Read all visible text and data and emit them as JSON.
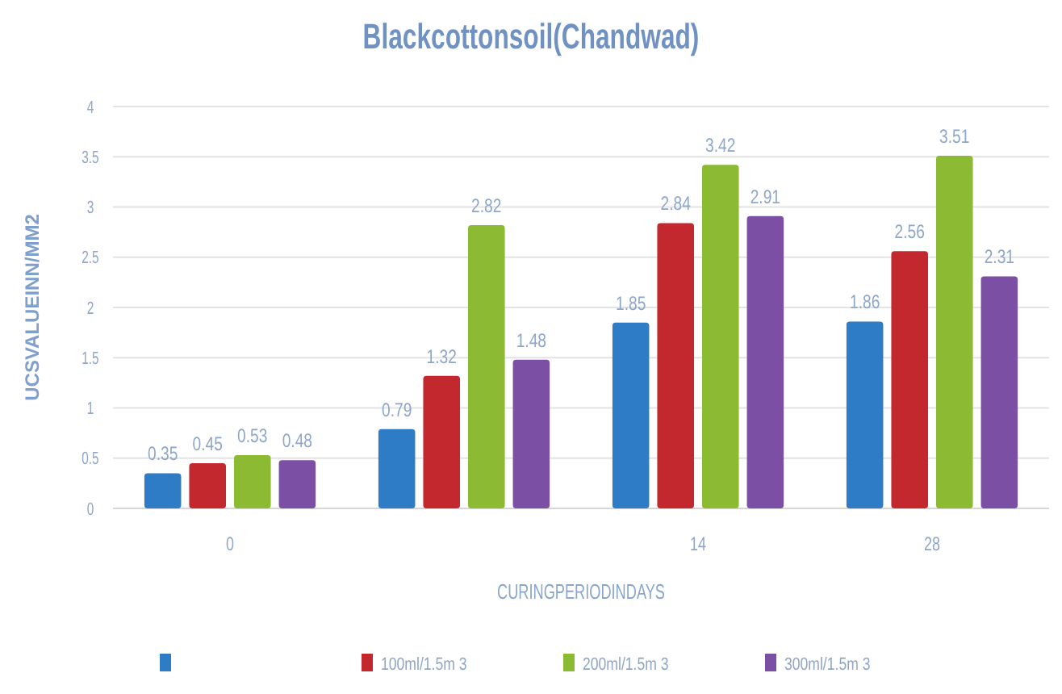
{
  "chart_data": {
    "type": "bar",
    "title": "Blackcottonsoil(Chandwad)",
    "xlabel": "CURINGPERIODINDAYS",
    "ylabel": "UCSVALUEINN/MM2",
    "categories": [
      "0",
      null,
      "14",
      "28"
    ],
    "series": [
      {
        "color": "#2e7bc6",
        "values": [
          0.35,
          0.79,
          1.85,
          1.86
        ]
      },
      {
        "name": "100ml/1.5m 3",
        "color": "#c3282e",
        "values": [
          0.45,
          1.32,
          2.84,
          2.56
        ]
      },
      {
        "name": "200ml/1.5m 3",
        "color": "#8dba33",
        "values": [
          0.53,
          2.82,
          3.42,
          3.51
        ]
      },
      {
        "name": "300ml/1.5m 3",
        "color": "#7b4fa3",
        "values": [
          0.48,
          1.48,
          2.91,
          2.31
        ]
      }
    ],
    "ylim": [
      0,
      4
    ],
    "yticks": [
      0,
      0.5,
      1,
      1.5,
      2,
      2.5,
      3,
      3.5,
      4
    ],
    "grid": "y",
    "legend": "bottom",
    "data_labels": true
  }
}
